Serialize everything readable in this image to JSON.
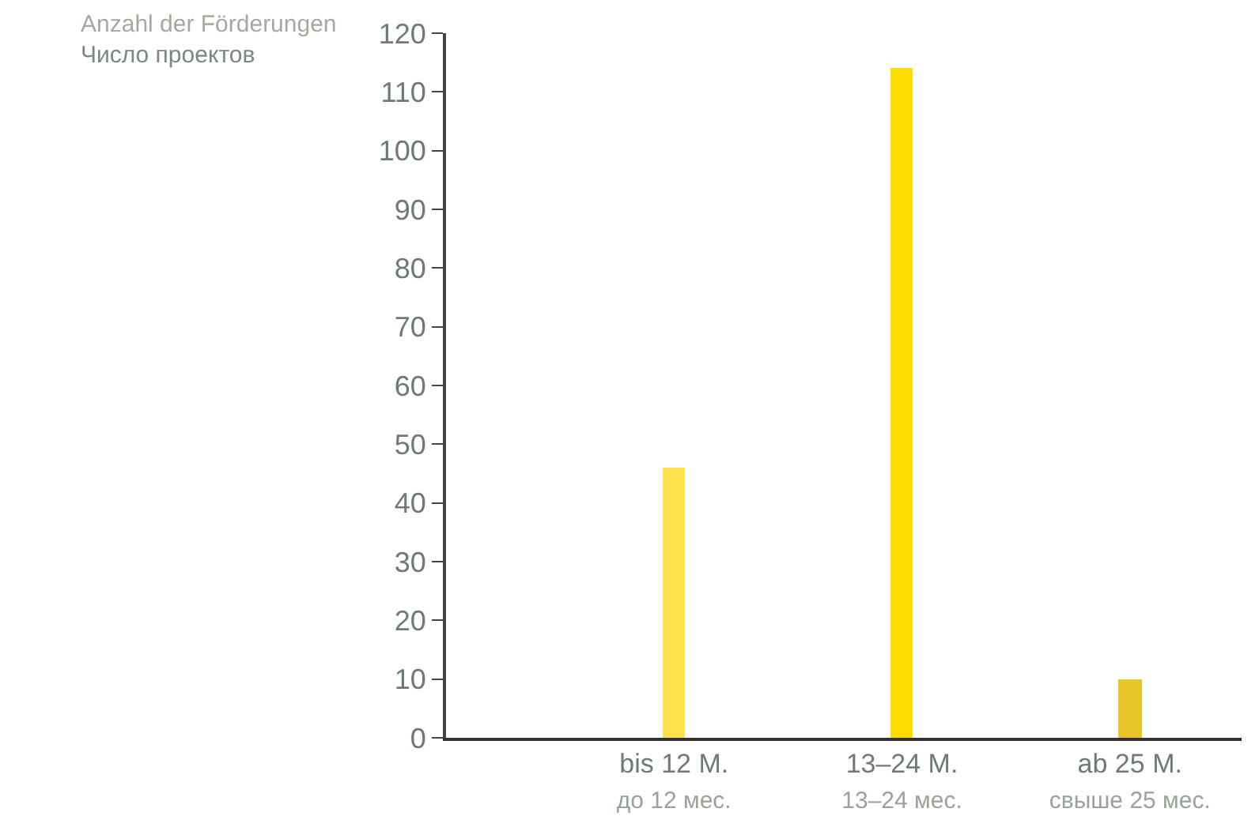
{
  "chart_data": {
    "type": "bar",
    "ylabel": "Anzahl der Förderungen\nЧисло проектов",
    "categories": [
      "bis 12 M.\nдо 12 мес.",
      "13–24 M.\n13–24 мес.",
      "ab 25 M.\nсвыше 25 мес."
    ],
    "values": [
      46,
      114,
      10
    ],
    "colors": [
      "#ffe14d",
      "#ffdd00",
      "#e8c52a"
    ],
    "ylim": [
      0,
      120
    ],
    "yticks": [
      0,
      10,
      20,
      30,
      40,
      50,
      60,
      70,
      80,
      90,
      100,
      110,
      120
    ]
  }
}
